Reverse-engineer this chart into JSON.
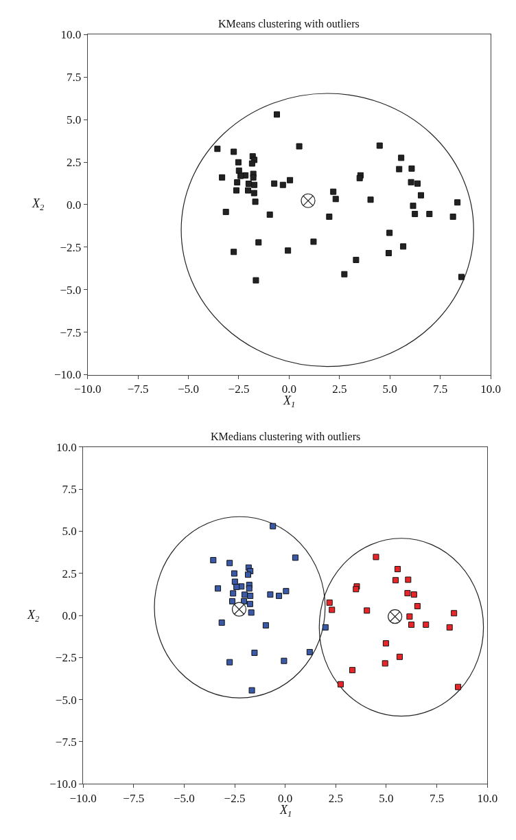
{
  "chart_data": [
    {
      "type": "scatter",
      "title": "KMeans clustering with outliers",
      "xlabel": "X$_{1}$",
      "ylabel": "X$_{2}$",
      "grid": false,
      "xlim": [
        -10,
        10
      ],
      "xticks": [
        {
          "value": -10,
          "label": "−10.0"
        },
        {
          "value": -7.5,
          "label": "−7.5"
        },
        {
          "value": -5,
          "label": "−5.0"
        },
        {
          "value": -2.5,
          "label": "−2.5"
        },
        {
          "value": 0,
          "label": "0.0"
        },
        {
          "value": 2.5,
          "label": "2.5"
        },
        {
          "value": 5,
          "label": "5.0"
        },
        {
          "value": 7.5,
          "label": "7.5"
        },
        {
          "value": 10,
          "label": "10.0"
        }
      ],
      "ylim": [
        -10,
        10
      ],
      "yticks": [
        {
          "value": -10,
          "label": "−10.0"
        },
        {
          "value": -7.5,
          "label": "−7.5"
        },
        {
          "value": -5,
          "label": "−5.0"
        },
        {
          "value": -2.5,
          "label": "−2.5"
        },
        {
          "value": 0,
          "label": "0.0"
        },
        {
          "value": 2.5,
          "label": "2.5"
        },
        {
          "value": 5,
          "label": "5.0"
        },
        {
          "value": 7.5,
          "label": "7.5"
        },
        {
          "value": 10,
          "label": "10.0"
        }
      ],
      "series": [
        {
          "type": "scatter",
          "marker": "square",
          "color": "#222222",
          "x": [
            -0.61,
            0.5,
            4.49,
            -3.56,
            -2.75,
            5.56,
            -1.81,
            -1.73,
            -1.84,
            -2.52,
            5.46,
            6.08,
            -2.49,
            -2.17,
            -2.41,
            -1.78,
            -1.78,
            -3.33,
            3.54,
            3.5,
            -2.58,
            6.05,
            6.37,
            -2.01,
            -1.73,
            -0.74,
            -0.31,
            0.04,
            -2.62,
            -2.04,
            -1.74,
            2.19,
            6.54,
            2.31,
            4.04,
            -1.68,
            8.35,
            6.15,
            -3.14,
            -0.96,
            1.99,
            6.24,
            6.96,
            8.13,
            4.98,
            -1.52,
            1.21,
            5.66,
            -2.75,
            -0.06,
            4.94,
            3.32,
            2.74,
            8.55,
            -1.65
          ],
          "values": [
            5.3,
            3.43,
            3.47,
            3.28,
            3.11,
            2.75,
            2.84,
            2.63,
            2.42,
            2.49,
            2.09,
            2.12,
            2.0,
            1.72,
            1.69,
            1.81,
            1.6,
            1.6,
            1.72,
            1.56,
            1.31,
            1.32,
            1.24,
            1.23,
            1.16,
            1.24,
            1.16,
            1.44,
            0.84,
            0.84,
            0.68,
            0.76,
            0.55,
            0.33,
            0.29,
            0.17,
            0.13,
            -0.07,
            -0.43,
            -0.59,
            -0.71,
            -0.55,
            -0.55,
            -0.71,
            -1.66,
            -2.22,
            -2.18,
            -2.46,
            -2.78,
            -2.7,
            -2.85,
            -3.25,
            -4.09,
            -4.25,
            -4.45
          ]
        },
        {
          "type": "scatter",
          "marker": "cross",
          "color": "#222222",
          "x": [
            0.94
          ],
          "values": [
            0.23
          ]
        }
      ]
    },
    {
      "type": "scatter",
      "title": "KMedians clustering with outliers",
      "xlabel": "X$_{1}$",
      "ylabel": "X$_{2}$",
      "grid": false,
      "xlim": [
        -10,
        10
      ],
      "xticks": [
        {
          "value": -10,
          "label": "−10.0"
        },
        {
          "value": -7.5,
          "label": "−7.5"
        },
        {
          "value": -5,
          "label": "−5.0"
        },
        {
          "value": -2.5,
          "label": "−2.5"
        },
        {
          "value": 0,
          "label": "0.0"
        },
        {
          "value": 2.5,
          "label": "2.5"
        },
        {
          "value": 5,
          "label": "5.0"
        },
        {
          "value": 7.5,
          "label": "7.5"
        },
        {
          "value": 10,
          "label": "10.0"
        }
      ],
      "ylim": [
        -10,
        10
      ],
      "yticks": [
        {
          "value": -10,
          "label": "−10.0"
        },
        {
          "value": -7.5,
          "label": "−7.5"
        },
        {
          "value": -5,
          "label": "−5.0"
        },
        {
          "value": -2.5,
          "label": "−2.5"
        },
        {
          "value": 0,
          "label": "0.0"
        },
        {
          "value": 2.5,
          "label": "2.5"
        },
        {
          "value": 5,
          "label": "5.0"
        },
        {
          "value": 7.5,
          "label": "7.5"
        },
        {
          "value": 10,
          "label": "10.0"
        }
      ],
      "series": [
        {
          "type": "scatter",
          "marker": "square",
          "color": "#3a5aa8",
          "x": [
            -0.61,
            0.5,
            -3.56,
            -2.75,
            -1.81,
            -1.73,
            -1.84,
            -2.52,
            -2.49,
            -2.17,
            -2.41,
            -1.78,
            -1.78,
            -3.33,
            -2.58,
            -2.01,
            -1.73,
            -0.74,
            -0.31,
            0.04,
            -2.62,
            -2.04,
            -1.74,
            -1.68,
            -3.14,
            -0.96,
            1.99,
            -1.52,
            1.21,
            -2.75,
            -0.06,
            -1.65
          ],
          "values": [
            5.3,
            3.43,
            3.28,
            3.11,
            2.84,
            2.63,
            2.42,
            2.49,
            2.0,
            1.72,
            1.69,
            1.81,
            1.6,
            1.6,
            1.31,
            1.23,
            1.16,
            1.24,
            1.16,
            1.44,
            0.84,
            0.84,
            0.68,
            0.17,
            -0.43,
            -0.59,
            -0.71,
            -2.22,
            -2.18,
            -2.78,
            -2.7,
            -4.45
          ]
        },
        {
          "type": "scatter",
          "marker": "square",
          "color": "#e8262a",
          "x": [
            2.19,
            2.31,
            3.54,
            3.5,
            4.49,
            4.04,
            5.56,
            5.46,
            6.08,
            6.05,
            6.37,
            6.54,
            8.35,
            6.15,
            6.24,
            6.96,
            8.13,
            4.98,
            5.66,
            4.94,
            3.32,
            2.74,
            8.55
          ],
          "values": [
            0.76,
            0.33,
            1.72,
            1.56,
            3.47,
            0.29,
            2.75,
            2.09,
            2.12,
            1.32,
            1.24,
            0.55,
            0.13,
            -0.07,
            -0.55,
            -0.55,
            -0.71,
            -1.66,
            -2.46,
            -2.85,
            -3.25,
            -4.09,
            -4.25
          ]
        },
        {
          "type": "scatter",
          "marker": "cross",
          "color": "#222222",
          "x": [
            -2.28,
            5.43
          ],
          "values": [
            0.36,
            -0.07
          ]
        }
      ]
    }
  ]
}
